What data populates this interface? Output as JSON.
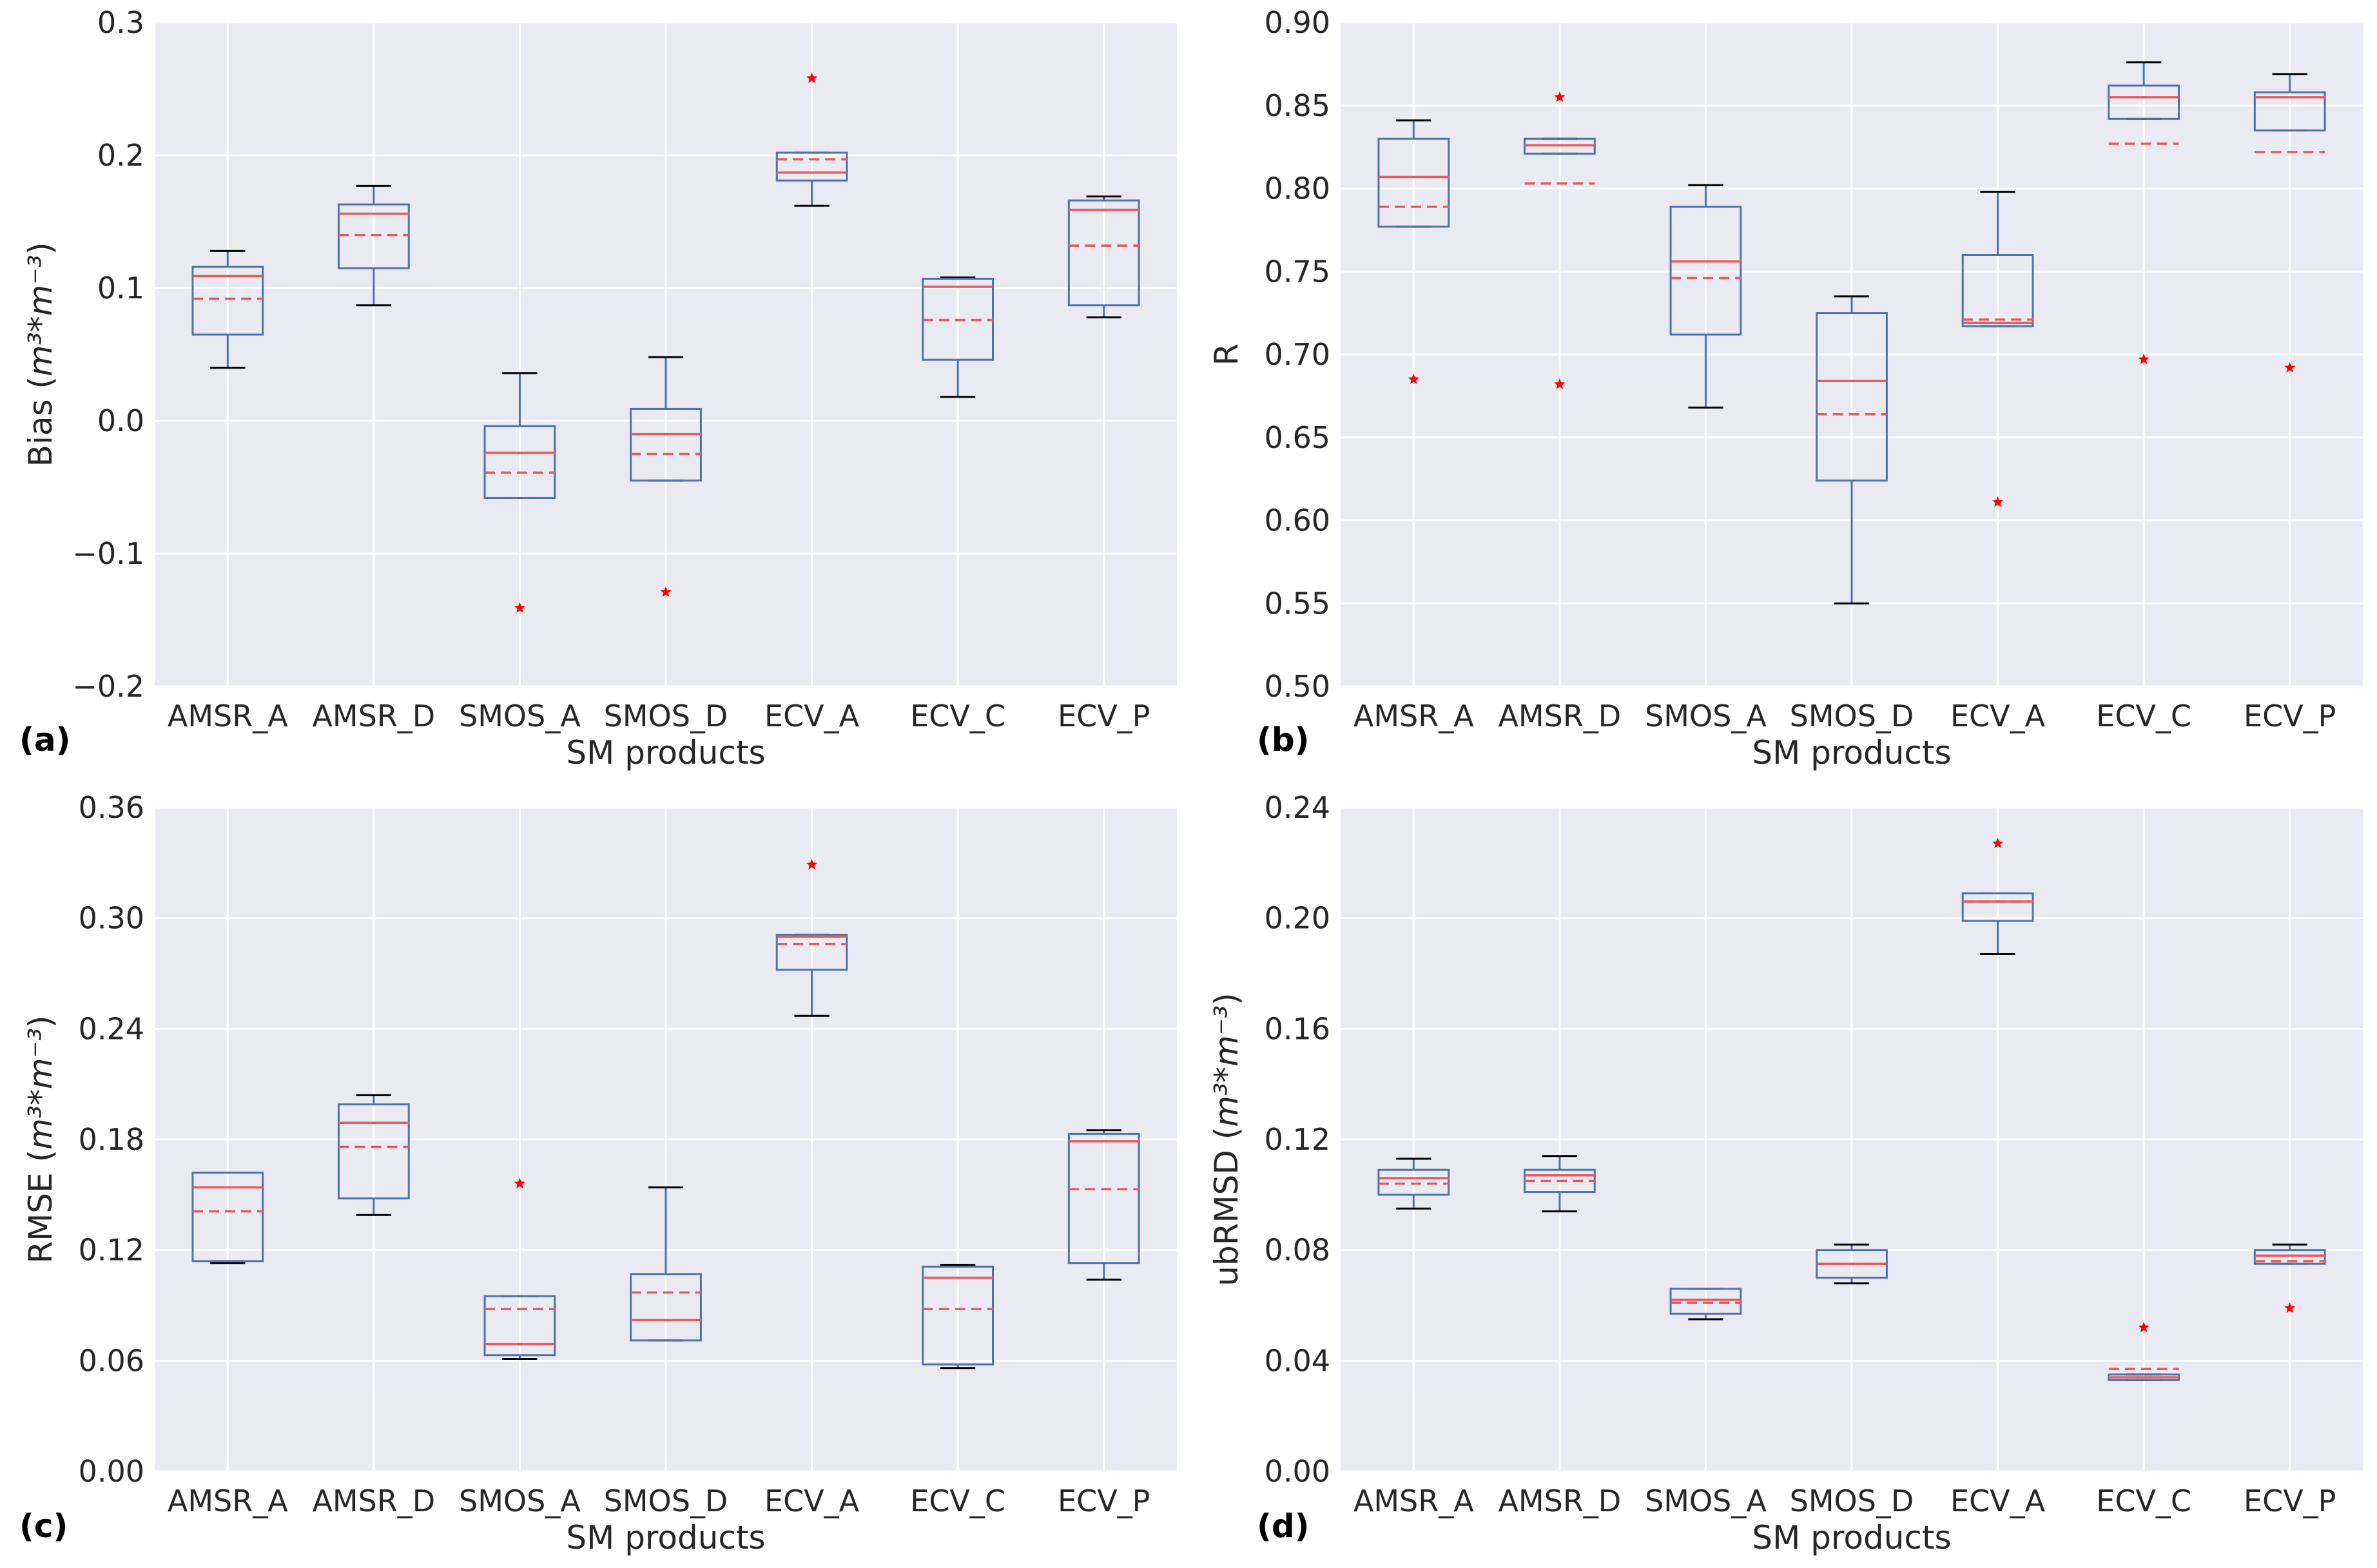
{
  "figure": {
    "colors": {
      "panel_bg": "#eaeaf2",
      "grid": "#ffffff",
      "box": "#4c72b0",
      "median": "#e8595a",
      "mean": "#e8595a",
      "whisker_cap": "#000000",
      "flier": "#ff0000"
    }
  },
  "chart_data": [
    {
      "type": "box",
      "panel_label": "(a)",
      "xlabel": "SM products",
      "ylabel_base": "Bias (",
      "ylabel_math": "m³*m⁻³",
      "ylabel_close": ")",
      "ylim": [
        -0.2,
        0.3
      ],
      "yticks": [
        -0.2,
        -0.1,
        0.0,
        0.1,
        0.2,
        0.3
      ],
      "ytick_labels": [
        "−0.2",
        "−0.1",
        "0.0",
        "0.1",
        "0.2",
        "0.3"
      ],
      "categories": [
        "AMSR_A",
        "AMSR_D",
        "SMOS_A",
        "SMOS_D",
        "ECV_A",
        "ECV_C",
        "ECV_P"
      ],
      "boxes": [
        {
          "whislo": 0.04,
          "q1": 0.065,
          "med": 0.109,
          "mean": 0.092,
          "q3": 0.116,
          "whishi": 0.128,
          "fliers": []
        },
        {
          "whislo": 0.087,
          "q1": 0.115,
          "med": 0.156,
          "mean": 0.14,
          "q3": 0.163,
          "whishi": 0.177,
          "fliers": []
        },
        {
          "whislo": -0.058,
          "q1": -0.058,
          "med": -0.024,
          "mean": -0.039,
          "q3": -0.004,
          "whishi": 0.036,
          "fliers": [
            -0.141
          ]
        },
        {
          "whislo": -0.045,
          "q1": -0.045,
          "med": -0.01,
          "mean": -0.025,
          "q3": 0.009,
          "whishi": 0.048,
          "fliers": [
            -0.129
          ]
        },
        {
          "whislo": 0.162,
          "q1": 0.181,
          "med": 0.187,
          "mean": 0.197,
          "q3": 0.202,
          "whishi": 0.202,
          "fliers": [
            0.258
          ]
        },
        {
          "whislo": 0.018,
          "q1": 0.046,
          "med": 0.101,
          "mean": 0.076,
          "q3": 0.107,
          "whishi": 0.108,
          "fliers": []
        },
        {
          "whislo": 0.078,
          "q1": 0.087,
          "med": 0.159,
          "mean": 0.132,
          "q3": 0.166,
          "whishi": 0.169,
          "fliers": []
        }
      ]
    },
    {
      "type": "box",
      "panel_label": "(b)",
      "xlabel": "SM products",
      "ylabel_base": "R",
      "ylabel_math": "",
      "ylabel_close": "",
      "ylim": [
        0.5,
        0.9
      ],
      "yticks": [
        0.5,
        0.55,
        0.6,
        0.65,
        0.7,
        0.75,
        0.8,
        0.85,
        0.9
      ],
      "ytick_labels": [
        "0.50",
        "0.55",
        "0.60",
        "0.65",
        "0.70",
        "0.75",
        "0.80",
        "0.85",
        "0.90"
      ],
      "categories": [
        "AMSR_A",
        "AMSR_D",
        "SMOS_A",
        "SMOS_D",
        "ECV_A",
        "ECV_C",
        "ECV_P"
      ],
      "boxes": [
        {
          "whislo": 0.777,
          "q1": 0.777,
          "med": 0.807,
          "mean": 0.789,
          "q3": 0.83,
          "whishi": 0.841,
          "fliers": [
            0.685
          ]
        },
        {
          "whislo": 0.821,
          "q1": 0.821,
          "med": 0.826,
          "mean": 0.803,
          "q3": 0.83,
          "whishi": 0.83,
          "fliers": [
            0.855,
            0.682
          ]
        },
        {
          "whislo": 0.668,
          "q1": 0.712,
          "med": 0.756,
          "mean": 0.746,
          "q3": 0.789,
          "whishi": 0.802,
          "fliers": []
        },
        {
          "whislo": 0.55,
          "q1": 0.624,
          "med": 0.684,
          "mean": 0.664,
          "q3": 0.725,
          "whishi": 0.735,
          "fliers": []
        },
        {
          "whislo": 0.717,
          "q1": 0.717,
          "med": 0.719,
          "mean": 0.721,
          "q3": 0.76,
          "whishi": 0.798,
          "fliers": [
            0.611
          ]
        },
        {
          "whislo": 0.842,
          "q1": 0.842,
          "med": 0.855,
          "mean": 0.827,
          "q3": 0.862,
          "whishi": 0.876,
          "fliers": [
            0.697
          ]
        },
        {
          "whislo": 0.835,
          "q1": 0.835,
          "med": 0.855,
          "mean": 0.822,
          "q3": 0.858,
          "whishi": 0.869,
          "fliers": [
            0.692
          ]
        }
      ]
    },
    {
      "type": "box",
      "panel_label": "(c)",
      "xlabel": "SM products",
      "ylabel_base": "RMSE (",
      "ylabel_math": "m³*m⁻³",
      "ylabel_close": ")",
      "ylim": [
        0.0,
        0.36
      ],
      "yticks": [
        0.0,
        0.06,
        0.12,
        0.18,
        0.24,
        0.3,
        0.36
      ],
      "ytick_labels": [
        "0.00",
        "0.06",
        "0.12",
        "0.18",
        "0.24",
        "0.30",
        "0.36"
      ],
      "categories": [
        "AMSR_A",
        "AMSR_D",
        "SMOS_A",
        "SMOS_D",
        "ECV_A",
        "ECV_C",
        "ECV_P"
      ],
      "boxes": [
        {
          "whislo": 0.113,
          "q1": 0.114,
          "med": 0.154,
          "mean": 0.141,
          "q3": 0.162,
          "whishi": 0.162,
          "fliers": []
        },
        {
          "whislo": 0.139,
          "q1": 0.148,
          "med": 0.189,
          "mean": 0.176,
          "q3": 0.199,
          "whishi": 0.204,
          "fliers": []
        },
        {
          "whislo": 0.061,
          "q1": 0.063,
          "med": 0.069,
          "mean": 0.088,
          "q3": 0.095,
          "whishi": 0.095,
          "fliers": [
            0.156
          ]
        },
        {
          "whislo": 0.071,
          "q1": 0.071,
          "med": 0.082,
          "mean": 0.097,
          "q3": 0.107,
          "whishi": 0.154,
          "fliers": []
        },
        {
          "whislo": 0.247,
          "q1": 0.272,
          "med": 0.29,
          "mean": 0.286,
          "q3": 0.291,
          "whishi": 0.291,
          "fliers": [
            0.329
          ]
        },
        {
          "whislo": 0.056,
          "q1": 0.058,
          "med": 0.105,
          "mean": 0.088,
          "q3": 0.111,
          "whishi": 0.112,
          "fliers": []
        },
        {
          "whislo": 0.104,
          "q1": 0.113,
          "med": 0.179,
          "mean": 0.153,
          "q3": 0.183,
          "whishi": 0.185,
          "fliers": []
        }
      ]
    },
    {
      "type": "box",
      "panel_label": "(d)",
      "xlabel": "SM products",
      "ylabel_base": "ubRMSD (",
      "ylabel_math": "m³*m⁻³",
      "ylabel_close": ")",
      "ylim": [
        0.0,
        0.24
      ],
      "yticks": [
        0.0,
        0.04,
        0.08,
        0.12,
        0.16,
        0.2,
        0.24
      ],
      "ytick_labels": [
        "0.00",
        "0.04",
        "0.08",
        "0.12",
        "0.16",
        "0.20",
        "0.24"
      ],
      "categories": [
        "AMSR_A",
        "AMSR_D",
        "SMOS_A",
        "SMOS_D",
        "ECV_A",
        "ECV_C",
        "ECV_P"
      ],
      "boxes": [
        {
          "whislo": 0.095,
          "q1": 0.1,
          "med": 0.106,
          "mean": 0.104,
          "q3": 0.109,
          "whishi": 0.113,
          "fliers": []
        },
        {
          "whislo": 0.094,
          "q1": 0.101,
          "med": 0.107,
          "mean": 0.105,
          "q3": 0.109,
          "whishi": 0.114,
          "fliers": []
        },
        {
          "whislo": 0.055,
          "q1": 0.057,
          "med": 0.062,
          "mean": 0.061,
          "q3": 0.066,
          "whishi": 0.066,
          "fliers": []
        },
        {
          "whislo": 0.068,
          "q1": 0.07,
          "med": 0.075,
          "mean": 0.075,
          "q3": 0.08,
          "whishi": 0.082,
          "fliers": []
        },
        {
          "whislo": 0.187,
          "q1": 0.199,
          "med": 0.206,
          "mean": 0.206,
          "q3": 0.209,
          "whishi": 0.209,
          "fliers": [
            0.227
          ]
        },
        {
          "whislo": 0.033,
          "q1": 0.033,
          "med": 0.034,
          "mean": 0.037,
          "q3": 0.035,
          "whishi": 0.035,
          "fliers": [
            0.052
          ]
        },
        {
          "whislo": 0.075,
          "q1": 0.075,
          "med": 0.078,
          "mean": 0.076,
          "q3": 0.08,
          "whishi": 0.082,
          "fliers": [
            0.059
          ]
        }
      ]
    }
  ]
}
